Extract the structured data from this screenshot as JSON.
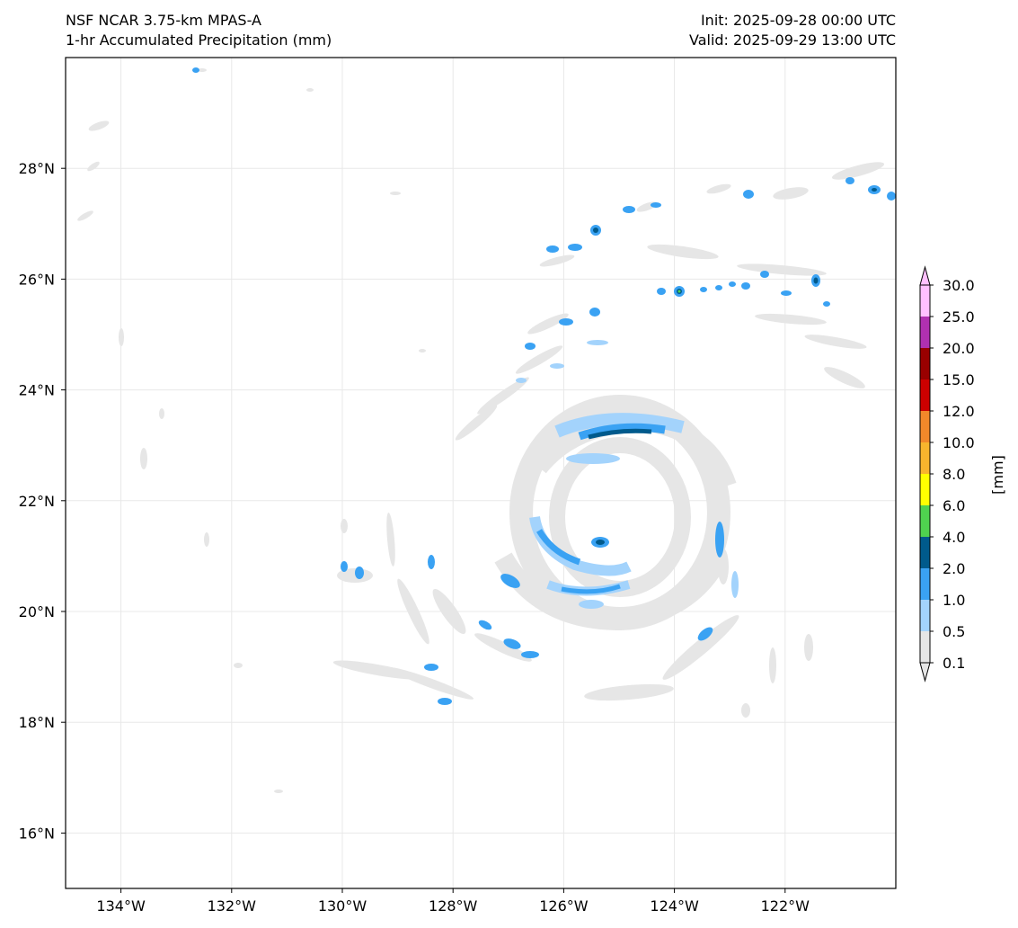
{
  "titles": {
    "left_line1": "NSF NCAR 3.75-km MPAS-A",
    "left_line2": "1-hr Accumulated Precipitation (mm)",
    "right_line1": "Init: 2025-09-28 00:00 UTC",
    "right_line2": "Valid: 2025-09-29 13:00 UTC"
  },
  "map": {
    "lon_labels": [
      "134°W",
      "132°W",
      "130°W",
      "128°W",
      "126°W",
      "124°W",
      "122°W"
    ],
    "lat_labels": [
      "28°N",
      "26°N",
      "24°N",
      "22°N",
      "20°N",
      "18°N",
      "16°N"
    ],
    "lon_values": [
      -134,
      -132,
      -130,
      -128,
      -126,
      -124,
      -122
    ],
    "lat_values": [
      28,
      26,
      24,
      22,
      20,
      18,
      16
    ],
    "lon_range": [
      -135,
      -120
    ],
    "lat_range": [
      15,
      30
    ],
    "storm_center": {
      "lon": -125.5,
      "lat": 21.6
    }
  },
  "colorbar": {
    "label": "[mm]",
    "levels": [
      "0.1",
      "0.5",
      "1.0",
      "2.0",
      "4.0",
      "6.0",
      "8.0",
      "10.0",
      "12.0",
      "15.0",
      "20.0",
      "25.0",
      "30.0"
    ],
    "colors": [
      "#e6e6e6",
      "#a3d3fc",
      "#3aa2f3",
      "#005a8c",
      "#4fd24f",
      "#ffff00",
      "#f8b52d",
      "#f2882a",
      "#cc0000",
      "#990000",
      "#b030b0",
      "#ffc0ff"
    ]
  }
}
